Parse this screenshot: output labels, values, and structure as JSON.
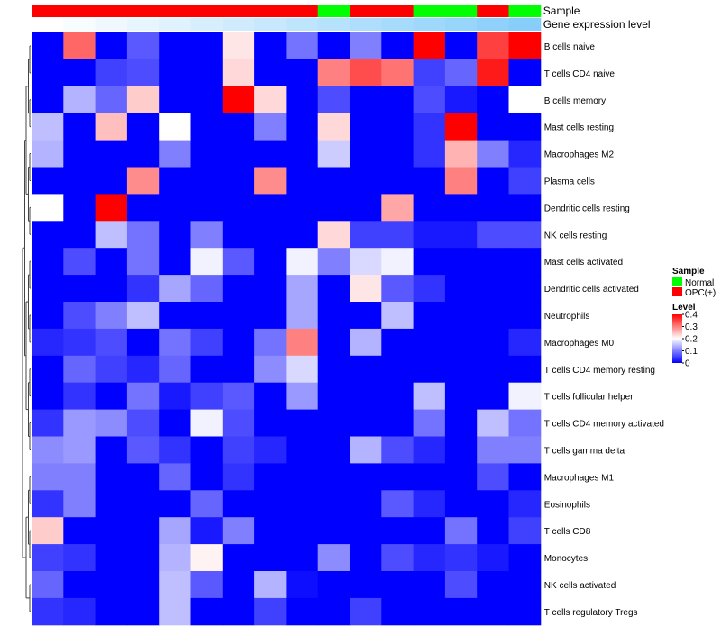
{
  "chart_data": {
    "type": "heatmap",
    "annotation_labels": {
      "sample": "Sample",
      "gene_expression": "Gene expression level"
    },
    "sample_annotation": [
      "OPC(+)",
      "OPC(+)",
      "OPC(+)",
      "OPC(+)",
      "OPC(+)",
      "OPC(+)",
      "OPC(+)",
      "OPC(+)",
      "OPC(+)",
      "Normal",
      "OPC(+)",
      "OPC(+)",
      "Normal",
      "Normal",
      "OPC(+)",
      "Normal"
    ],
    "gene_expression_level": [
      0.0,
      0.02,
      0.04,
      0.06,
      0.08,
      0.1,
      0.12,
      0.14,
      0.16,
      0.18,
      0.2,
      0.22,
      0.24,
      0.26,
      0.28,
      0.3
    ],
    "rows": [
      "B cells naive",
      "T cells CD4 naive",
      "B cells memory",
      "Mast cells resting",
      "Macrophages M2",
      "Plasma cells",
      "Dendritic cells resting",
      "NK cells resting",
      "Mast cells activated",
      "Dendritic cells activated",
      "Neutrophils",
      "Macrophages M0",
      "T cells CD4 memory resting",
      "T cells follicular helper",
      "T cells CD4 memory activated",
      "T cells gamma delta",
      "Macrophages M1",
      "Eosinophils",
      "T cells CD8",
      "Monocytes",
      "NK cells activated",
      "T cells regulatory  Tregs"
    ],
    "values": [
      [
        0,
        0.32,
        0,
        0.07,
        0,
        0,
        0.22,
        0,
        0.09,
        0,
        0.1,
        0,
        0.4,
        0,
        0.35,
        0.4
      ],
      [
        0,
        0,
        0.05,
        0.06,
        0,
        0,
        0.23,
        0,
        0,
        0.3,
        0.34,
        0.31,
        0.05,
        0.08,
        0.38,
        0
      ],
      [
        0,
        0.14,
        0.08,
        0.24,
        0,
        0,
        0.4,
        0.23,
        0,
        0.06,
        0,
        0,
        0.06,
        0.02,
        0,
        0.2
      ],
      [
        0.15,
        0,
        0.25,
        0,
        0.2,
        0,
        0,
        0.1,
        0,
        0.23,
        0,
        0,
        0.04,
        0.4,
        0,
        0
      ],
      [
        0.14,
        0,
        0,
        0,
        0.1,
        0,
        0,
        0,
        0,
        0.16,
        0,
        0,
        0.04,
        0.26,
        0.1,
        0.03
      ],
      [
        0,
        0,
        0,
        0.29,
        0,
        0,
        0,
        0.29,
        0,
        0,
        0,
        0,
        0,
        0.3,
        0,
        0.05
      ],
      [
        0.2,
        0,
        0.4,
        0,
        0,
        0,
        0,
        0,
        0,
        0,
        0,
        0.27,
        0,
        0,
        0,
        0
      ],
      [
        0,
        0,
        0.15,
        0.09,
        0,
        0.1,
        0,
        0,
        0,
        0.23,
        0.05,
        0.05,
        0.02,
        0.02,
        0.06,
        0.06
      ],
      [
        0,
        0.06,
        0,
        0.09,
        0,
        0.19,
        0.07,
        0,
        0.19,
        0.1,
        0.17,
        0.19,
        0,
        0,
        0,
        0
      ],
      [
        0,
        0,
        0,
        0.04,
        0.13,
        0.08,
        0,
        0,
        0.13,
        0,
        0.22,
        0.07,
        0.04,
        0,
        0,
        0
      ],
      [
        0,
        0.06,
        0.1,
        0.15,
        0,
        0,
        0,
        0,
        0.13,
        0,
        0,
        0.15,
        0,
        0,
        0,
        0
      ],
      [
        0.03,
        0.04,
        0.06,
        0,
        0.09,
        0.05,
        0,
        0.09,
        0.3,
        0,
        0.14,
        0,
        0,
        0,
        0,
        0.03
      ],
      [
        0,
        0.08,
        0.05,
        0.03,
        0.08,
        0,
        0,
        0.11,
        0.17,
        0,
        0,
        0,
        0,
        0,
        0,
        0
      ],
      [
        0,
        0.04,
        0,
        0.09,
        0.02,
        0.05,
        0.07,
        0,
        0.12,
        0,
        0,
        0,
        0.15,
        0,
        0,
        0.19
      ],
      [
        0.04,
        0.12,
        0.11,
        0.06,
        0,
        0.19,
        0.06,
        0,
        0,
        0,
        0,
        0,
        0.09,
        0,
        0.15,
        0.09
      ],
      [
        0.11,
        0.12,
        0,
        0.07,
        0.04,
        0,
        0.05,
        0.03,
        0,
        0,
        0.14,
        0.06,
        0.03,
        0,
        0.1,
        0.1
      ],
      [
        0.1,
        0.1,
        0,
        0,
        0.08,
        0,
        0.04,
        0,
        0,
        0,
        0,
        0,
        0,
        0,
        0.06,
        0
      ],
      [
        0.04,
        0.1,
        0,
        0,
        0,
        0.08,
        0,
        0,
        0,
        0,
        0,
        0.07,
        0.03,
        0,
        0,
        0.03
      ],
      [
        0.24,
        0,
        0,
        0,
        0.13,
        0.02,
        0.1,
        0,
        0,
        0,
        0,
        0,
        0,
        0.09,
        0,
        0.05
      ],
      [
        0.05,
        0.04,
        0,
        0,
        0.14,
        0.21,
        0,
        0,
        0,
        0.11,
        0,
        0.06,
        0.03,
        0.04,
        0.02,
        0
      ],
      [
        0.08,
        0,
        0,
        0,
        0.15,
        0.07,
        0,
        0.14,
        0.01,
        0,
        0,
        0,
        0,
        0.06,
        0,
        0
      ],
      [
        0.04,
        0.03,
        0,
        0,
        0.15,
        0,
        0,
        0.05,
        0,
        0,
        0.05,
        0,
        0,
        0,
        0,
        0
      ]
    ],
    "legend": {
      "sample_title": "Sample",
      "sample_entries": [
        {
          "label": "Normal",
          "color": "#00ff00"
        },
        {
          "label": "OPC(+)",
          "color": "#ff0000"
        }
      ],
      "level_title": "Level",
      "level_ticks": [
        0.4,
        0.3,
        0.2,
        0.1,
        0
      ],
      "level_range": [
        0,
        0.4
      ]
    },
    "colors": {
      "low": "#0000ff",
      "mid": "#ffffff",
      "high": "#ff0000",
      "level_low": "#ffffff",
      "level_high": "#87cefa"
    }
  }
}
